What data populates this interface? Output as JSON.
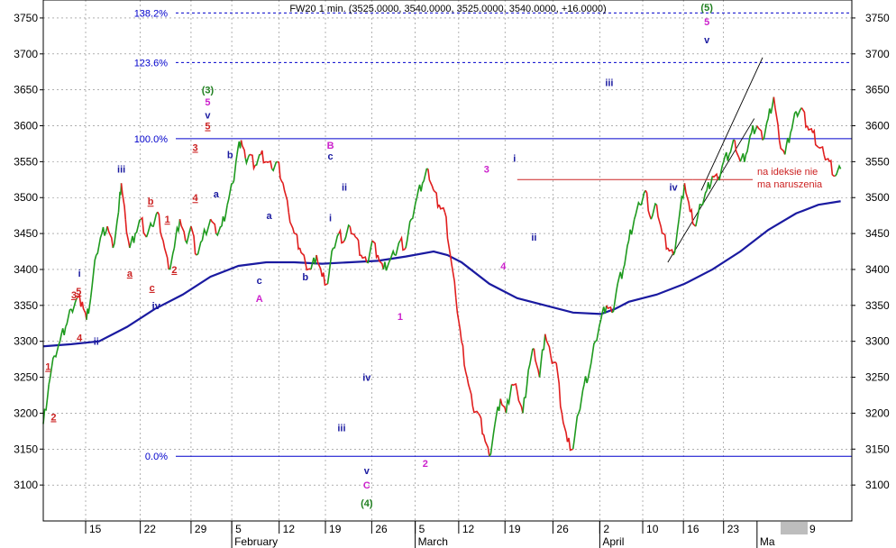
{
  "chart_data": {
    "type": "line",
    "title": "FW20 1 min. (3525.0000, 3540.0000, 3525.0000, 3540.0000, +16.0000)",
    "ylim": [
      3050,
      3775
    ],
    "y_ticks": [
      3100,
      3150,
      3200,
      3250,
      3300,
      3350,
      3400,
      3450,
      3500,
      3550,
      3600,
      3650,
      3700,
      3750
    ],
    "x_day_ticks": [
      {
        "label": "15",
        "pos": 0.076
      },
      {
        "label": "22",
        "pos": 0.174
      },
      {
        "label": "29",
        "pos": 0.265
      },
      {
        "label": "5",
        "pos": 0.338
      },
      {
        "label": "12",
        "pos": 0.423
      },
      {
        "label": "19",
        "pos": 0.506
      },
      {
        "label": "26",
        "pos": 0.589
      },
      {
        "label": "5",
        "pos": 0.667
      },
      {
        "label": "12",
        "pos": 0.745
      },
      {
        "label": "19",
        "pos": 0.828
      },
      {
        "label": "26",
        "pos": 0.914
      },
      {
        "label": "2",
        "pos": 0.998
      },
      {
        "label": "10",
        "pos": 1.075
      },
      {
        "label": "16",
        "pos": 1.148
      },
      {
        "label": "23",
        "pos": 1.22
      }
    ],
    "x_month_labels": [
      "February",
      "March",
      "April",
      "Ma"
    ],
    "x_axis_end_label": "9",
    "price": [
      [
        0.0,
        3185
      ],
      [
        0.02,
        3240
      ],
      [
        0.04,
        3280
      ],
      [
        0.06,
        3300
      ],
      [
        0.08,
        3320
      ],
      [
        0.1,
        3345
      ],
      [
        0.12,
        3360
      ],
      [
        0.14,
        3355
      ],
      [
        0.155,
        3330
      ],
      [
        0.17,
        3360
      ],
      [
        0.19,
        3420
      ],
      [
        0.21,
        3450
      ],
      [
        0.23,
        3460
      ],
      [
        0.25,
        3430
      ],
      [
        0.27,
        3480
      ],
      [
        0.28,
        3520
      ],
      [
        0.295,
        3470
      ],
      [
        0.31,
        3430
      ],
      [
        0.33,
        3450
      ],
      [
        0.35,
        3470
      ],
      [
        0.37,
        3445
      ],
      [
        0.39,
        3460
      ],
      [
        0.41,
        3480
      ],
      [
        0.43,
        3440
      ],
      [
        0.45,
        3400
      ],
      [
        0.47,
        3430
      ],
      [
        0.49,
        3470
      ],
      [
        0.51,
        3440
      ],
      [
        0.53,
        3460
      ],
      [
        0.55,
        3420
      ],
      [
        0.57,
        3440
      ],
      [
        0.6,
        3470
      ],
      [
        0.62,
        3450
      ],
      [
        0.64,
        3460
      ],
      [
        0.66,
        3490
      ],
      [
        0.68,
        3520
      ],
      [
        0.695,
        3560
      ],
      [
        0.71,
        3580
      ],
      [
        0.725,
        3555
      ],
      [
        0.74,
        3560
      ],
      [
        0.76,
        3545
      ],
      [
        0.78,
        3560
      ],
      [
        0.8,
        3550
      ],
      [
        0.82,
        3540
      ],
      [
        0.84,
        3550
      ],
      [
        0.86,
        3520
      ],
      [
        0.88,
        3480
      ],
      [
        0.9,
        3450
      ],
      [
        0.92,
        3430
      ],
      [
        0.94,
        3410
      ],
      [
        0.96,
        3400
      ],
      [
        0.98,
        3420
      ],
      [
        1.0,
        3390
      ],
      [
        1.02,
        3380
      ],
      [
        1.04,
        3430
      ],
      [
        1.06,
        3450
      ],
      [
        1.08,
        3440
      ],
      [
        1.1,
        3460
      ],
      [
        1.12,
        3445
      ],
      [
        1.14,
        3420
      ],
      [
        1.16,
        3410
      ],
      [
        1.18,
        3440
      ],
      [
        1.2,
        3420
      ],
      [
        1.22,
        3400
      ],
      [
        1.24,
        3410
      ],
      [
        1.26,
        3420
      ],
      [
        1.28,
        3440
      ],
      [
        1.3,
        3430
      ],
      [
        1.32,
        3470
      ],
      [
        1.34,
        3500
      ],
      [
        1.36,
        3520
      ],
      [
        1.38,
        3540
      ],
      [
        1.4,
        3510
      ],
      [
        1.42,
        3490
      ],
      [
        1.44,
        3480
      ],
      [
        1.46,
        3420
      ],
      [
        1.48,
        3360
      ],
      [
        1.5,
        3300
      ],
      [
        1.52,
        3250
      ],
      [
        1.54,
        3210
      ],
      [
        1.56,
        3200
      ],
      [
        1.58,
        3170
      ],
      [
        1.6,
        3140
      ],
      [
        1.62,
        3185
      ],
      [
        1.64,
        3220
      ],
      [
        1.66,
        3200
      ],
      [
        1.68,
        3240
      ],
      [
        1.7,
        3230
      ],
      [
        1.72,
        3200
      ],
      [
        1.74,
        3260
      ],
      [
        1.76,
        3290
      ],
      [
        1.78,
        3250
      ],
      [
        1.8,
        3310
      ],
      [
        1.82,
        3280
      ],
      [
        1.84,
        3270
      ],
      [
        1.86,
        3200
      ],
      [
        1.88,
        3160
      ],
      [
        1.9,
        3150
      ],
      [
        1.92,
        3200
      ],
      [
        1.94,
        3240
      ],
      [
        1.96,
        3260
      ],
      [
        1.98,
        3300
      ],
      [
        2.0,
        3330
      ],
      [
        2.02,
        3350
      ],
      [
        2.04,
        3340
      ],
      [
        2.06,
        3380
      ],
      [
        2.08,
        3400
      ],
      [
        2.1,
        3440
      ],
      [
        2.12,
        3470
      ],
      [
        2.14,
        3490
      ],
      [
        2.16,
        3510
      ],
      [
        2.18,
        3470
      ],
      [
        2.2,
        3490
      ],
      [
        2.22,
        3450
      ],
      [
        2.24,
        3430
      ],
      [
        2.26,
        3420
      ],
      [
        2.28,
        3470
      ],
      [
        2.3,
        3520
      ],
      [
        2.32,
        3480
      ],
      [
        2.34,
        3460
      ],
      [
        2.36,
        3490
      ],
      [
        2.38,
        3510
      ],
      [
        2.4,
        3530
      ],
      [
        2.42,
        3525
      ],
      [
        2.44,
        3550
      ],
      [
        2.46,
        3560
      ],
      [
        2.48,
        3580
      ],
      [
        2.5,
        3550
      ],
      [
        2.52,
        3560
      ],
      [
        2.54,
        3590
      ],
      [
        2.56,
        3600
      ],
      [
        2.58,
        3580
      ],
      [
        2.6,
        3610
      ],
      [
        2.62,
        3640
      ],
      [
        2.64,
        3580
      ],
      [
        2.66,
        3560
      ],
      [
        2.68,
        3590
      ],
      [
        2.7,
        3620
      ],
      [
        2.72,
        3625
      ],
      [
        2.74,
        3600
      ],
      [
        2.76,
        3590
      ],
      [
        2.78,
        3570
      ],
      [
        2.8,
        3560
      ],
      [
        2.82,
        3550
      ],
      [
        2.84,
        3530
      ],
      [
        2.86,
        3540
      ]
    ],
    "moving_average": [
      [
        0.0,
        3293
      ],
      [
        0.1,
        3296
      ],
      [
        0.2,
        3300
      ],
      [
        0.3,
        3320
      ],
      [
        0.4,
        3345
      ],
      [
        0.5,
        3365
      ],
      [
        0.6,
        3390
      ],
      [
        0.7,
        3405
      ],
      [
        0.8,
        3410
      ],
      [
        0.9,
        3410
      ],
      [
        1.0,
        3408
      ],
      [
        1.1,
        3410
      ],
      [
        1.2,
        3412
      ],
      [
        1.3,
        3418
      ],
      [
        1.4,
        3425
      ],
      [
        1.45,
        3420
      ],
      [
        1.5,
        3410
      ],
      [
        1.6,
        3380
      ],
      [
        1.7,
        3360
      ],
      [
        1.8,
        3350
      ],
      [
        1.9,
        3340
      ],
      [
        2.0,
        3338
      ],
      [
        2.05,
        3345
      ],
      [
        2.1,
        3355
      ],
      [
        2.2,
        3365
      ],
      [
        2.3,
        3380
      ],
      [
        2.4,
        3400
      ],
      [
        2.5,
        3425
      ],
      [
        2.6,
        3455
      ],
      [
        2.7,
        3478
      ],
      [
        2.78,
        3490
      ],
      [
        2.86,
        3495
      ]
    ],
    "fib_levels": [
      {
        "label": "0.0%",
        "value": 3140
      },
      {
        "label": "100.0%",
        "value": 3582
      },
      {
        "label": "123.6%",
        "value": 3688
      },
      {
        "label": "138.2%",
        "value": 3757
      }
    ],
    "channel": [
      [
        [
          2.36,
          3510
        ],
        [
          2.58,
          3695
        ]
      ],
      [
        [
          2.24,
          3410
        ],
        [
          2.55,
          3610
        ]
      ]
    ],
    "support_line": {
      "from": 3525,
      "to": 3525
    },
    "annotation": {
      "line1": "na ideksie nie",
      "line2": "ma naruszenia"
    },
    "wave_labels": [
      {
        "text": "1",
        "x": 0.017,
        "y": 3260,
        "color": "#cc2222",
        "underline": true
      },
      {
        "text": "2",
        "x": 0.037,
        "y": 3190,
        "color": "#cc2222",
        "underline": true
      },
      {
        "text": "4",
        "x": 0.13,
        "y": 3300,
        "color": "#cc2222"
      },
      {
        "text": "3",
        "x": 0.11,
        "y": 3360,
        "color": "#cc2222",
        "underline": true
      },
      {
        "text": "5",
        "x": 0.127,
        "y": 3365,
        "color": "#cc2222",
        "underline": true
      },
      {
        "text": "i",
        "x": 0.13,
        "y": 3390,
        "color": "#1a1aa0"
      },
      {
        "text": "ii",
        "x": 0.19,
        "y": 3295,
        "color": "#1a1aa0"
      },
      {
        "text": "iii",
        "x": 0.28,
        "y": 3535,
        "color": "#1a1aa0"
      },
      {
        "text": "b",
        "x": 0.385,
        "y": 3490,
        "color": "#cc2222",
        "underline": true
      },
      {
        "text": "a",
        "x": 0.31,
        "y": 3390,
        "color": "#cc2222",
        "underline": true
      },
      {
        "text": "c",
        "x": 0.39,
        "y": 3370,
        "color": "#cc2222",
        "underline": true
      },
      {
        "text": "iv",
        "x": 0.405,
        "y": 3345,
        "color": "#1a1aa0"
      },
      {
        "text": "1",
        "x": 0.445,
        "y": 3465,
        "color": "#cc2222",
        "underline": true
      },
      {
        "text": "2",
        "x": 0.47,
        "y": 3395,
        "color": "#cc2222",
        "underline": true
      },
      {
        "text": "3",
        "x": 0.545,
        "y": 3565,
        "color": "#cc2222",
        "underline": true
      },
      {
        "text": "4",
        "x": 0.545,
        "y": 3495,
        "color": "#cc2222",
        "underline": true
      },
      {
        "text": "5",
        "x": 0.59,
        "y": 3595,
        "color": "#cc2222",
        "underline": true
      },
      {
        "text": "v",
        "x": 0.59,
        "y": 3610,
        "color": "#1a1aa0"
      },
      {
        "text": "5",
        "x": 0.59,
        "y": 3628,
        "color": "#cc22cc"
      },
      {
        "text": "(3)",
        "x": 0.59,
        "y": 3645,
        "color": "#208020"
      },
      {
        "text": "b",
        "x": 0.67,
        "y": 3555,
        "color": "#1a1aa0"
      },
      {
        "text": "a",
        "x": 0.62,
        "y": 3500,
        "color": "#1a1aa0"
      },
      {
        "text": "a",
        "x": 0.81,
        "y": 3470,
        "color": "#1a1aa0"
      },
      {
        "text": "c",
        "x": 0.775,
        "y": 3380,
        "color": "#1a1aa0"
      },
      {
        "text": "A",
        "x": 0.775,
        "y": 3355,
        "color": "#cc22cc"
      },
      {
        "text": "b",
        "x": 0.94,
        "y": 3385,
        "color": "#1a1aa0"
      },
      {
        "text": "B",
        "x": 1.03,
        "y": 3568,
        "color": "#cc22cc"
      },
      {
        "text": "c",
        "x": 1.03,
        "y": 3553,
        "color": "#1a1aa0"
      },
      {
        "text": "i",
        "x": 1.03,
        "y": 3467,
        "color": "#1a1aa0"
      },
      {
        "text": "ii",
        "x": 1.08,
        "y": 3510,
        "color": "#1a1aa0"
      },
      {
        "text": "iii",
        "x": 1.07,
        "y": 3175,
        "color": "#1a1aa0"
      },
      {
        "text": "iv",
        "x": 1.16,
        "y": 3245,
        "color": "#1a1aa0"
      },
      {
        "text": "v",
        "x": 1.16,
        "y": 3115,
        "color": "#1a1aa0"
      },
      {
        "text": "C",
        "x": 1.16,
        "y": 3095,
        "color": "#cc22cc"
      },
      {
        "text": "(4)",
        "x": 1.16,
        "y": 3070,
        "color": "#208020"
      },
      {
        "text": "1",
        "x": 1.28,
        "y": 3330,
        "color": "#cc22cc"
      },
      {
        "text": "2",
        "x": 1.37,
        "y": 3125,
        "color": "#cc22cc"
      },
      {
        "text": "3",
        "x": 1.59,
        "y": 3535,
        "color": "#cc22cc"
      },
      {
        "text": "4",
        "x": 1.65,
        "y": 3400,
        "color": "#cc22cc"
      },
      {
        "text": "i",
        "x": 1.69,
        "y": 3550,
        "color": "#1a1aa0"
      },
      {
        "text": "ii",
        "x": 1.76,
        "y": 3440,
        "color": "#1a1aa0"
      },
      {
        "text": "iii",
        "x": 2.03,
        "y": 3655,
        "color": "#1a1aa0"
      },
      {
        "text": "iv",
        "x": 2.26,
        "y": 3510,
        "color": "#1a1aa0"
      },
      {
        "text": "(5)",
        "x": 2.38,
        "y": 3760,
        "color": "#208020"
      },
      {
        "text": "5",
        "x": 2.38,
        "y": 3740,
        "color": "#cc22cc"
      },
      {
        "text": "v",
        "x": 2.38,
        "y": 3715,
        "color": "#1a1aa0"
      }
    ],
    "colors": {
      "up": "#1e9a1e",
      "down": "#e01e1e",
      "moving_average": "#1a1aa0",
      "fib": "#0000cc",
      "channel": "#000000",
      "support": "#cc2222",
      "annotation": "#cc2222",
      "grid": "#808080"
    },
    "grid": true
  }
}
